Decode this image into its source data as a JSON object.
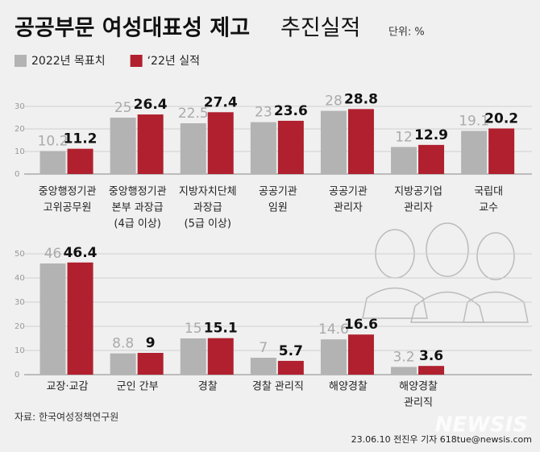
{
  "chart_data": [
    {
      "type": "bar",
      "title": "공공부문 여성대표성 제고",
      "subtitle": "추진실적",
      "unit": "단위: %",
      "categories": [
        [
          "중앙행정기관",
          "고위공무원"
        ],
        [
          "중앙행정기관",
          "본부 과장급",
          "(4급 이상)"
        ],
        [
          "지방자치단체",
          "과장급",
          "(5급 이상)"
        ],
        [
          "공공기관",
          "임원"
        ],
        [
          "공공기관",
          "관리자"
        ],
        [
          "지방공기업",
          "관리자"
        ],
        [
          "국립대",
          "교수"
        ]
      ],
      "series": [
        {
          "name": "2022년 목표치",
          "color": "#b3b3b3",
          "values": [
            10.2,
            25,
            22.5,
            23,
            28,
            12,
            19.1
          ]
        },
        {
          "name": "‘22년 실적",
          "color": "#b0202e",
          "values": [
            11.2,
            26.4,
            27.4,
            23.6,
            28.8,
            12.9,
            20.2
          ]
        }
      ],
      "ylim": [
        0,
        30
      ],
      "yticks": [
        0,
        10,
        20,
        30
      ],
      "grid": true
    },
    {
      "type": "bar",
      "categories": [
        [
          "교장·교감"
        ],
        [
          "군인 간부"
        ],
        [
          "경찰"
        ],
        [
          "경찰 관리직"
        ],
        [
          "해양경찰"
        ],
        [
          "해양경찰",
          "관리직"
        ]
      ],
      "series": [
        {
          "color": "#b3b3b3",
          "values": [
            46,
            8.8,
            15,
            7,
            14.6,
            3.2
          ]
        },
        {
          "color": "#b0202e",
          "values": [
            46.4,
            9,
            15.1,
            5.7,
            16.6,
            3.6
          ]
        }
      ],
      "ylim": [
        0,
        50
      ],
      "yticks": [
        0,
        10,
        20,
        30,
        40,
        50
      ],
      "grid": true
    }
  ],
  "source": "자료: 한국여성정책연구원",
  "credit": "23.06.10 전진우 기자 618tue@newsis.com",
  "watermark": "NEWSIS"
}
